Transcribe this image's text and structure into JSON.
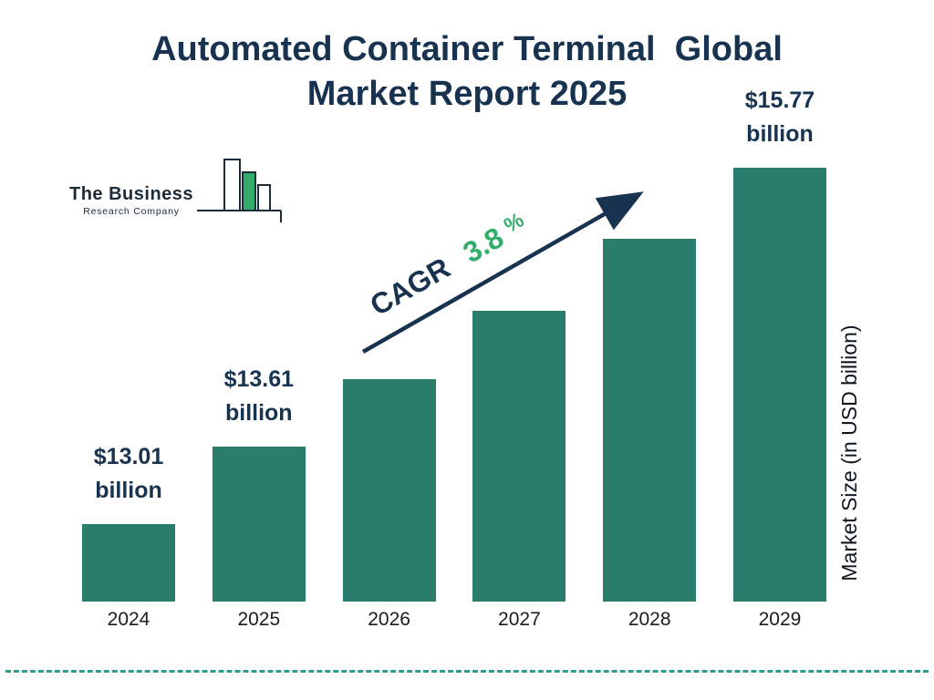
{
  "title": {
    "line1": "Automated Container Terminal  Global",
    "line2": "Market Report 2025"
  },
  "logo": {
    "name": "The Business",
    "subname": "Research Company"
  },
  "colors": {
    "bar": "#2a7d6b",
    "navy": "#17334f",
    "green": "#33ad6b",
    "divider": "#2f9d8d"
  },
  "chart_data": {
    "type": "bar",
    "title": "Automated Container Terminal Global Market Report 2025",
    "ylabel": "Market Size (in USD billion)",
    "categories": [
      "2024",
      "2025",
      "2026",
      "2027",
      "2028",
      "2029"
    ],
    "values": [
      13.01,
      13.61,
      14.13,
      14.66,
      15.22,
      15.77
    ],
    "cagr_label": "CAGR",
    "cagr_value": "3.8",
    "cagr_unit": "%",
    "legend": "none",
    "gridlines": false,
    "bars": [
      {
        "year": "2024",
        "value": 13.01,
        "amount": "$13.01",
        "unit": "billion",
        "labeled": true
      },
      {
        "year": "2025",
        "value": 13.61,
        "amount": "$13.61",
        "unit": "billion",
        "labeled": true
      },
      {
        "year": "2026",
        "value": 14.13,
        "amount": "",
        "unit": "",
        "labeled": false
      },
      {
        "year": "2027",
        "value": 14.66,
        "amount": "",
        "unit": "",
        "labeled": false
      },
      {
        "year": "2028",
        "value": 15.22,
        "amount": "",
        "unit": "",
        "labeled": false
      },
      {
        "year": "2029",
        "value": 15.77,
        "amount": "$15.77",
        "unit": "billion",
        "labeled": true
      }
    ]
  }
}
